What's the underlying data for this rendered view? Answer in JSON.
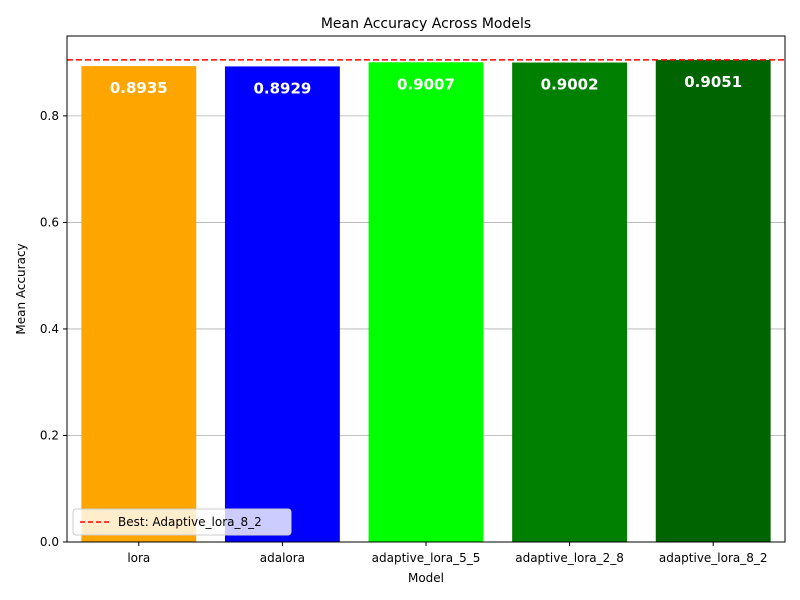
{
  "chart_data": {
    "type": "bar",
    "title": "Mean Accuracy Across Models",
    "xlabel": "Model",
    "ylabel": "Mean Accuracy",
    "categories": [
      "lora",
      "adalora",
      "adaptive_lora_5_5",
      "adaptive_lora_2_8",
      "adaptive_lora_8_2"
    ],
    "values": [
      0.8935,
      0.8929,
      0.9007,
      0.9002,
      0.9051
    ],
    "value_labels": [
      "0.8935",
      "0.8929",
      "0.9007",
      "0.9002",
      "0.9051"
    ],
    "colors": [
      "#ffa500",
      "#0000ff",
      "#00ff00",
      "#008000",
      "#006400"
    ],
    "ylim": [
      0,
      0.95
    ],
    "yticks": [
      0.0,
      0.2,
      0.4,
      0.6,
      0.8
    ],
    "ytick_labels": [
      "0.0",
      "0.2",
      "0.4",
      "0.6",
      "0.8"
    ],
    "grid": "y",
    "reference_line": {
      "value": 0.9051,
      "color": "#ff0000",
      "style": "dashed"
    },
    "legend": {
      "position": "lower-left",
      "entries": [
        "Best: Adaptive_lora_8_2"
      ]
    }
  }
}
